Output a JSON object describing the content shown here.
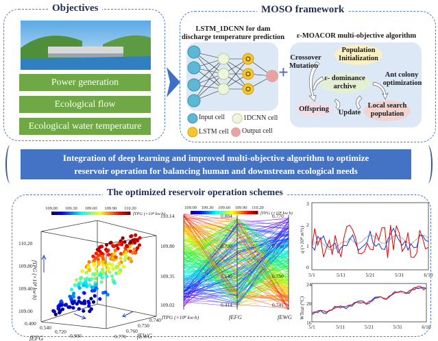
{
  "objectives": {
    "title": "Objectives",
    "items": [
      "Power generation",
      "Ecological flow",
      "Ecological water temperature"
    ]
  },
  "moso": {
    "title": "MOSO framework",
    "lstm": {
      "title_line1": "LSTM_1DCNN for dam",
      "title_line2": "discharge temperature prediction",
      "legend": {
        "input": "Input cell",
        "cnn": "1DCNN cell",
        "lstm": "LSTM cell",
        "output": "Output cell"
      }
    },
    "plus": "+",
    "moacor": {
      "title": "ε-MOACOR multi-objective algorithm",
      "pop_init_1": "Population",
      "pop_init_2": "Initialization",
      "archive_1": "ε- dominance",
      "archive_2": "archive",
      "offspring": "Offspring",
      "local_1": "Local search",
      "local_2": "population",
      "update": "Update",
      "crossover_1": "Crossover",
      "crossover_2": "Mutation",
      "ant_1": "Ant colony",
      "ant_2": "optimization"
    }
  },
  "banner": {
    "line1": "Integration of deep learning and improved multi-objective algorithm to optimize",
    "line2": "reservoir operation for balancing human and downstream ecological needs"
  },
  "schemes": {
    "title": "The optimized reservoir operation schemes",
    "scatter3d": {
      "colorbar_ticks": [
        "109.00",
        "109.30",
        "109.60",
        "109.90",
        "110.20"
      ],
      "colorbar_label": "fTPG (×10⁸ kw·h)",
      "z_ticks": [
        "110.20",
        "109.80",
        "109.40",
        "109.00"
      ],
      "z_label": "fTPG (×10⁸ kw·h)",
      "x_ticks": [
        "0.400",
        "0.540",
        "0.720",
        "0.900"
      ],
      "x_label": "fEFG",
      "y_ticks": [
        "0.740",
        "0.750",
        "0.760",
        "0.770"
      ],
      "y_label": "fEWG"
    },
    "parallel": {
      "colorbar_ticks": [
        "109.00",
        "109.30",
        "109.60",
        "109.90",
        "110.20"
      ],
      "colorbar_label": "fTPG (×10⁸ kw·h)",
      "axis1_ticks": [
        "110.14",
        "109.80",
        "109.35",
        "109.02"
      ],
      "axis1_label": "fTPG (×10⁸ kw·h)",
      "axis2_ticks": [
        "0.884",
        "0.720",
        "0.540",
        "0.414"
      ],
      "axis2_label": "fEFG",
      "axis3_ticks": [
        "0.770",
        "0.760",
        "0.750",
        "0.741"
      ],
      "axis3_label": "fEWG"
    },
    "flow_chart": {
      "y_label": "q (×10⁴ m³/s)",
      "y_ticks": [
        "3",
        "2",
        "1",
        "0"
      ],
      "x_ticks": [
        "5/1",
        "5/11",
        "5/21",
        "5/31",
        "6/10"
      ]
    },
    "temp_chart": {
      "y_label": "WTout (°C)",
      "y_ticks": [
        "24",
        "20",
        "16"
      ],
      "x_ticks": [
        "5/1",
        "5/11",
        "5/21",
        "5/31",
        "6/10"
      ]
    }
  },
  "colors": {
    "accent": "#4472c4",
    "green": "#6fa845",
    "title": "#1f2d5a"
  }
}
